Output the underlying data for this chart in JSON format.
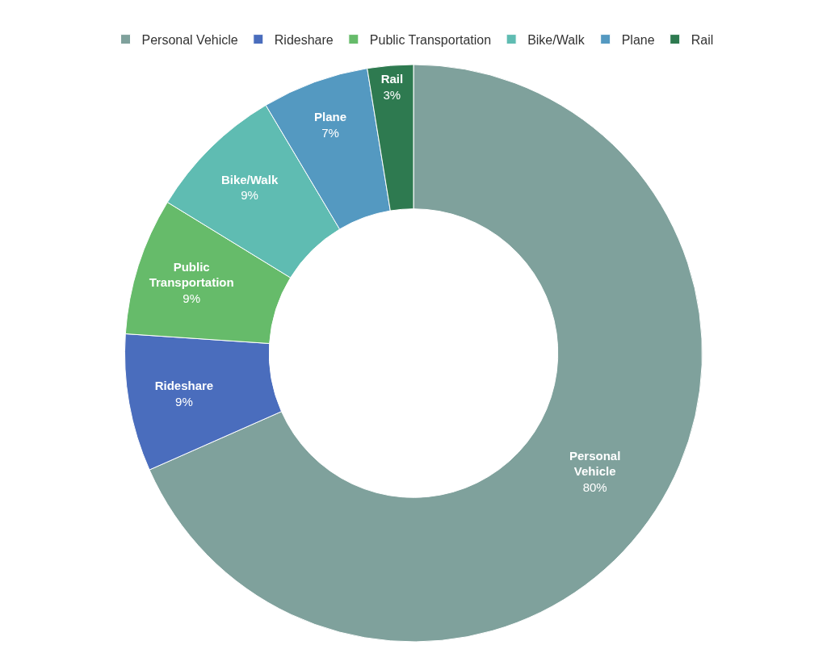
{
  "chart_data": {
    "type": "donut",
    "categories": [
      "Personal Vehicle",
      "Rideshare",
      "Public Transportation",
      "Bike/Walk",
      "Plane",
      "Rail"
    ],
    "values": [
      80,
      9,
      9,
      9,
      7,
      3
    ],
    "value_labels": [
      "80%",
      "9%",
      "9%",
      "9%",
      "7%",
      "3%"
    ],
    "colors": [
      "#7fa19c",
      "#4a6dbd",
      "#66bb6a",
      "#5fbcb2",
      "#5499c1",
      "#2e7a50"
    ],
    "legend": "top"
  }
}
